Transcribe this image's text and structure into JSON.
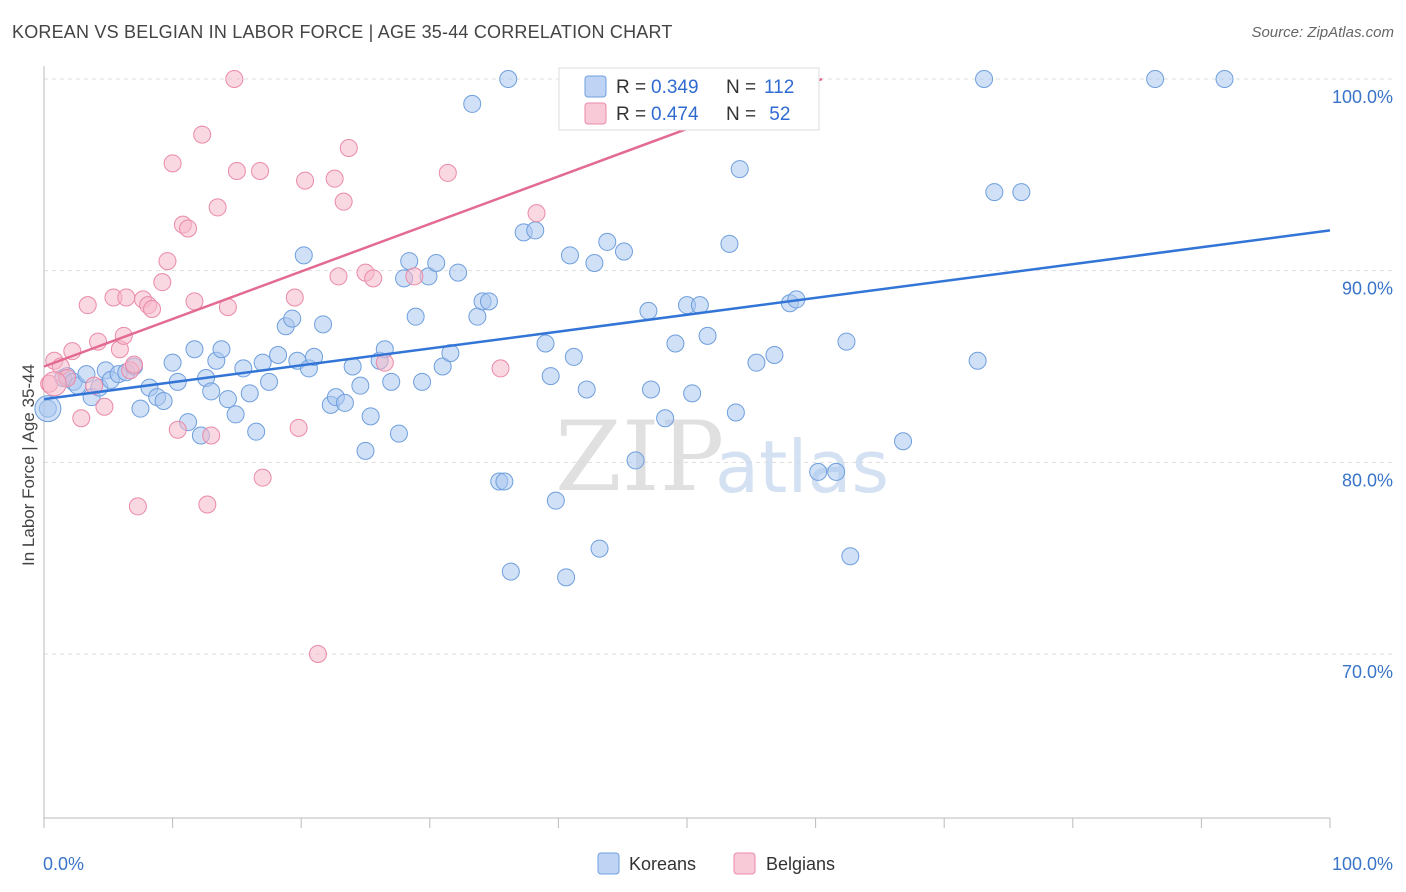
{
  "header": {
    "title": "KOREAN VS BELGIAN IN LABOR FORCE | AGE 35-44 CORRELATION CHART",
    "source": "Source: ZipAtlas.com"
  },
  "watermark": {
    "zip": "ZIP",
    "atlas": "atlas"
  },
  "legend": {
    "rows": [
      {
        "r_label": "R = ",
        "r_value": "0.349",
        "n_label": "N = ",
        "n_value": "112",
        "color": "#a9c6f0"
      },
      {
        "r_label": "R = ",
        "r_value": "0.474",
        "n_label": "N = ",
        "n_value": " 52",
        "color": "#f5b8cb"
      }
    ]
  },
  "chart_data": {
    "type": "scatter",
    "title": "KOREAN VS BELGIAN IN LABOR FORCE | AGE 35-44 CORRELATION CHART",
    "xlabel": "",
    "ylabel": "In Labor Force | Age 35-44",
    "xlim": [
      0,
      100
    ],
    "ylim": [
      60,
      102
    ],
    "x_tick_labels": [
      "0.0%",
      "100.0%"
    ],
    "y_ticks": [
      70,
      80,
      90,
      100
    ],
    "y_tick_labels": [
      "70.0%",
      "80.0%",
      "90.0%",
      "100.0%"
    ],
    "grid": true,
    "legend_position": "top-center",
    "series": [
      {
        "name": "Koreans",
        "color": "#a9c6f0",
        "stroke": "#6f9fdd",
        "line_color": "#3275d6",
        "trend": {
          "x": [
            0,
            100
          ],
          "y": [
            83.3,
            92.1
          ]
        },
        "points": [
          [
            0.3,
            82.8
          ],
          [
            1.5,
            84.4
          ],
          [
            1.8,
            84.5
          ],
          [
            2.3,
            84.2
          ],
          [
            2.6,
            84.0
          ],
          [
            3.3,
            84.6
          ],
          [
            3.7,
            83.4
          ],
          [
            4.3,
            83.9
          ],
          [
            4.8,
            84.8
          ],
          [
            5.2,
            84.3
          ],
          [
            5.8,
            84.6
          ],
          [
            6.4,
            84.7
          ],
          [
            7.0,
            85.0
          ],
          [
            7.5,
            82.8
          ],
          [
            8.2,
            83.9
          ],
          [
            8.8,
            83.4
          ],
          [
            9.3,
            83.2
          ],
          [
            10.0,
            85.2
          ],
          [
            10.4,
            84.2
          ],
          [
            11.2,
            82.1
          ],
          [
            11.7,
            85.9
          ],
          [
            12.2,
            81.4
          ],
          [
            12.6,
            84.4
          ],
          [
            13.0,
            83.7
          ],
          [
            13.4,
            85.3
          ],
          [
            13.8,
            85.9
          ],
          [
            14.3,
            83.3
          ],
          [
            14.9,
            82.5
          ],
          [
            15.5,
            84.9
          ],
          [
            16.0,
            83.6
          ],
          [
            16.5,
            81.6
          ],
          [
            17.0,
            85.2
          ],
          [
            17.5,
            84.2
          ],
          [
            18.2,
            85.6
          ],
          [
            18.8,
            87.1
          ],
          [
            19.3,
            87.5
          ],
          [
            19.7,
            85.3
          ],
          [
            20.2,
            90.8
          ],
          [
            20.6,
            84.9
          ],
          [
            21.0,
            85.5
          ],
          [
            21.7,
            87.2
          ],
          [
            22.3,
            83.0
          ],
          [
            22.7,
            83.4
          ],
          [
            23.4,
            83.1
          ],
          [
            24.0,
            85.0
          ],
          [
            24.6,
            84.0
          ],
          [
            25.0,
            80.6
          ],
          [
            25.4,
            82.4
          ],
          [
            26.1,
            85.3
          ],
          [
            26.5,
            85.9
          ],
          [
            27.0,
            84.2
          ],
          [
            27.6,
            81.5
          ],
          [
            28.0,
            89.6
          ],
          [
            28.4,
            90.5
          ],
          [
            28.9,
            87.6
          ],
          [
            29.4,
            84.2
          ],
          [
            29.9,
            89.7
          ],
          [
            30.5,
            90.4
          ],
          [
            31.0,
            85.0
          ],
          [
            31.6,
            85.7
          ],
          [
            32.2,
            89.9
          ],
          [
            33.3,
            98.7
          ],
          [
            33.7,
            87.6
          ],
          [
            34.1,
            88.4
          ],
          [
            34.6,
            88.4
          ],
          [
            35.4,
            79.0
          ],
          [
            35.8,
            79.0
          ],
          [
            36.1,
            100.0
          ],
          [
            36.3,
            74.3
          ],
          [
            37.3,
            92.0
          ],
          [
            38.2,
            92.1
          ],
          [
            39.0,
            86.2
          ],
          [
            39.4,
            84.5
          ],
          [
            39.8,
            78.0
          ],
          [
            40.6,
            74.0
          ],
          [
            40.9,
            90.8
          ],
          [
            41.2,
            85.5
          ],
          [
            42.2,
            83.8
          ],
          [
            42.8,
            90.4
          ],
          [
            43.2,
            75.5
          ],
          [
            43.8,
            91.5
          ],
          [
            45.1,
            91.0
          ],
          [
            46.0,
            80.1
          ],
          [
            47.0,
            87.9
          ],
          [
            47.2,
            83.8
          ],
          [
            48.3,
            82.3
          ],
          [
            49.1,
            86.2
          ],
          [
            50.0,
            88.2
          ],
          [
            50.4,
            83.6
          ],
          [
            51.0,
            88.2
          ],
          [
            51.6,
            86.6
          ],
          [
            53.3,
            91.4
          ],
          [
            53.8,
            82.6
          ],
          [
            54.1,
            95.3
          ],
          [
            55.4,
            85.2
          ],
          [
            56.8,
            85.6
          ],
          [
            58.0,
            88.3
          ],
          [
            58.5,
            88.5
          ],
          [
            59.6,
            100.0
          ],
          [
            60.2,
            79.5
          ],
          [
            61.6,
            79.5
          ],
          [
            62.4,
            86.3
          ],
          [
            62.7,
            75.1
          ],
          [
            66.8,
            81.1
          ],
          [
            72.6,
            85.3
          ],
          [
            73.1,
            100.0
          ],
          [
            73.9,
            94.1
          ],
          [
            76.0,
            94.1
          ],
          [
            86.4,
            100.0
          ],
          [
            91.8,
            100.0
          ]
        ]
      },
      {
        "name": "Belgians",
        "color": "#f5b8cb",
        "stroke": "#ea8aa8",
        "line_color": "#e36a92",
        "trend": {
          "x": [
            0,
            60.5
          ],
          "y": [
            85.0,
            100.0
          ]
        },
        "points": [
          [
            0.4,
            84.1
          ],
          [
            0.8,
            85.3
          ],
          [
            1.3,
            85.0
          ],
          [
            1.8,
            84.4
          ],
          [
            2.2,
            85.8
          ],
          [
            2.9,
            82.3
          ],
          [
            3.4,
            88.2
          ],
          [
            3.9,
            84.0
          ],
          [
            4.2,
            86.3
          ],
          [
            4.7,
            82.9
          ],
          [
            5.4,
            88.6
          ],
          [
            5.9,
            85.9
          ],
          [
            6.2,
            86.6
          ],
          [
            6.4,
            88.6
          ],
          [
            6.7,
            84.8
          ],
          [
            7.0,
            85.1
          ],
          [
            7.3,
            77.7
          ],
          [
            7.7,
            88.5
          ],
          [
            8.1,
            88.2
          ],
          [
            8.4,
            88.0
          ],
          [
            9.2,
            89.4
          ],
          [
            9.6,
            90.5
          ],
          [
            10.0,
            95.6
          ],
          [
            10.4,
            81.7
          ],
          [
            10.8,
            92.4
          ],
          [
            11.2,
            92.2
          ],
          [
            11.7,
            88.4
          ],
          [
            12.3,
            97.1
          ],
          [
            12.7,
            77.8
          ],
          [
            13.0,
            81.4
          ],
          [
            13.5,
            93.3
          ],
          [
            14.3,
            88.1
          ],
          [
            14.8,
            100.0
          ],
          [
            15.0,
            95.2
          ],
          [
            16.8,
            95.2
          ],
          [
            17.0,
            79.2
          ],
          [
            19.5,
            88.6
          ],
          [
            19.8,
            81.8
          ],
          [
            20.3,
            94.7
          ],
          [
            21.3,
            70.0
          ],
          [
            22.6,
            94.8
          ],
          [
            22.9,
            89.7
          ],
          [
            23.3,
            93.6
          ],
          [
            23.7,
            96.4
          ],
          [
            25.0,
            89.9
          ],
          [
            25.6,
            89.6
          ],
          [
            26.5,
            85.2
          ],
          [
            28.8,
            89.7
          ],
          [
            31.4,
            95.1
          ],
          [
            35.5,
            84.9
          ],
          [
            38.3,
            93.0
          ],
          [
            41.0,
            100.0
          ],
          [
            44.0,
            100.0
          ]
        ]
      }
    ]
  },
  "bottom_legend": [
    {
      "label": "Koreans",
      "color": "#a9c6f0"
    },
    {
      "label": "Belgians",
      "color": "#f5b8cb"
    }
  ]
}
